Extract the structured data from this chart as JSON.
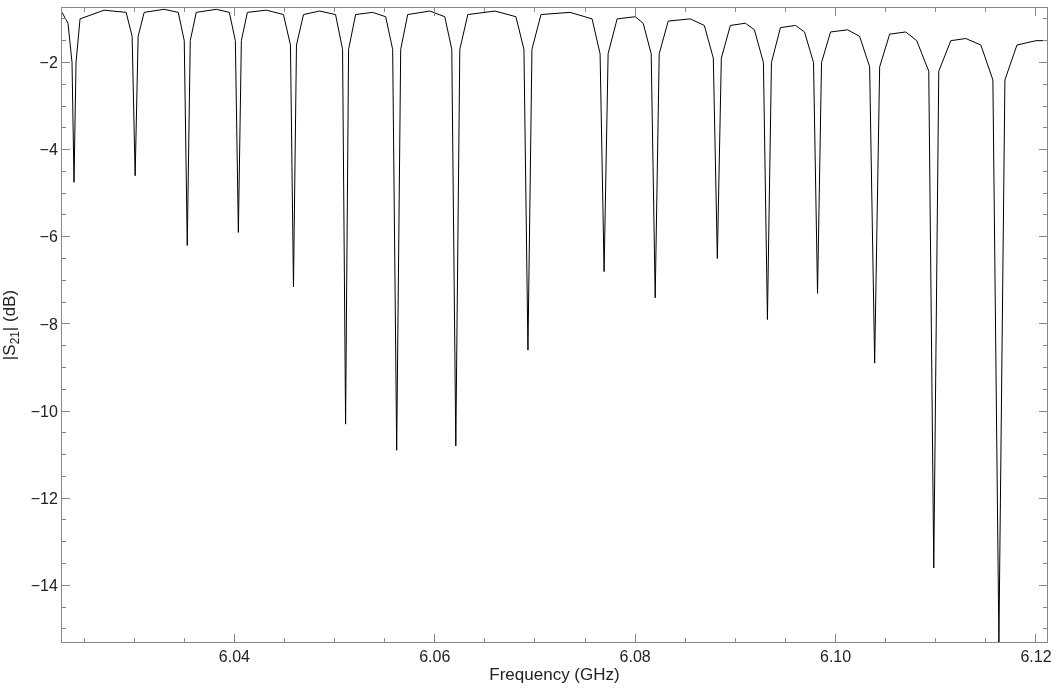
{
  "chart_data": {
    "type": "line",
    "xlabel": "Frequency (GHz)",
    "ylabel": "|S$_{21}$| (dB)",
    "xlim": [
      6.0228,
      6.1211
    ],
    "ylim": [
      -15.3,
      -0.75
    ],
    "xticks": [
      6.04,
      6.06,
      6.08,
      {
        "value": 6.1,
        "label": "6.10"
      },
      6.12
    ],
    "yticks": [
      -14,
      -12,
      -10,
      -8,
      -6,
      -4,
      -2
    ],
    "marker": "none",
    "line_style": "solid",
    "series": [
      {
        "color": "#000000",
        "x": [
          6.0228,
          6.0234,
          6.0238,
          6.024,
          6.0242,
          6.0246,
          6.027,
          6.0292,
          6.0298,
          6.0301,
          6.0304,
          6.031,
          6.033,
          6.0344,
          6.035,
          6.0353,
          6.0356,
          6.0362,
          6.0382,
          6.0395,
          6.0401,
          6.0404,
          6.0407,
          6.0413,
          6.0432,
          6.0449,
          6.0456,
          6.0459,
          6.0462,
          6.0469,
          6.0485,
          6.0501,
          6.0508,
          6.0511,
          6.0514,
          6.0521,
          6.0538,
          6.0551,
          6.0558,
          6.0562,
          6.0566,
          6.0573,
          6.0595,
          6.061,
          6.0617,
          6.0621,
          6.0625,
          6.0633,
          6.066,
          6.0681,
          6.0689,
          6.0693,
          6.0697,
          6.0706,
          6.0735,
          6.0757,
          6.0765,
          6.0769,
          6.0773,
          6.0782,
          6.08,
          6.0808,
          6.0816,
          6.082,
          6.0824,
          6.0833,
          6.0855,
          6.0869,
          6.0878,
          6.0882,
          6.0886,
          6.0895,
          6.091,
          6.0919,
          6.0928,
          6.0932,
          6.0936,
          6.0945,
          6.096,
          6.0969,
          6.0978,
          6.0982,
          6.0986,
          6.0995,
          6.1012,
          6.1024,
          6.1034,
          6.1039,
          6.1044,
          6.1054,
          6.107,
          6.1081,
          6.1093,
          6.1098,
          6.1103,
          6.1115,
          6.113,
          6.1145,
          6.1157,
          6.1163,
          6.1169,
          6.1181,
          6.12,
          6.1207
        ],
        "values": [
          -0.85,
          -1.1,
          -2.0,
          -4.75,
          -2.0,
          -1.0,
          -0.8,
          -0.85,
          -1.4,
          -4.6,
          -1.4,
          -0.85,
          -0.78,
          -0.85,
          -1.5,
          -6.2,
          -1.5,
          -0.85,
          -0.78,
          -0.85,
          -1.5,
          -5.9,
          -1.5,
          -0.85,
          -0.8,
          -0.9,
          -1.6,
          -7.15,
          -1.6,
          -0.9,
          -0.82,
          -0.9,
          -1.7,
          -10.3,
          -1.7,
          -0.9,
          -0.85,
          -0.95,
          -1.7,
          -10.9,
          -1.7,
          -0.9,
          -0.82,
          -0.95,
          -1.7,
          -10.8,
          -1.7,
          -0.9,
          -0.82,
          -0.95,
          -1.7,
          -8.6,
          -1.7,
          -0.9,
          -0.85,
          -1.0,
          -1.8,
          -6.8,
          -1.8,
          -1.0,
          -0.95,
          -1.1,
          -1.8,
          -7.4,
          -1.8,
          -1.05,
          -1.0,
          -1.15,
          -1.9,
          -6.5,
          -1.9,
          -1.15,
          -1.1,
          -1.25,
          -2.0,
          -7.9,
          -2.0,
          -1.2,
          -1.15,
          -1.3,
          -2.0,
          -7.3,
          -2.0,
          -1.3,
          -1.25,
          -1.4,
          -2.1,
          -8.9,
          -2.1,
          -1.35,
          -1.3,
          -1.5,
          -2.2,
          -13.6,
          -2.2,
          -1.5,
          -1.45,
          -1.6,
          -2.4,
          -15.3,
          -2.4,
          -1.6,
          -1.5,
          -1.5
        ]
      }
    ]
  }
}
